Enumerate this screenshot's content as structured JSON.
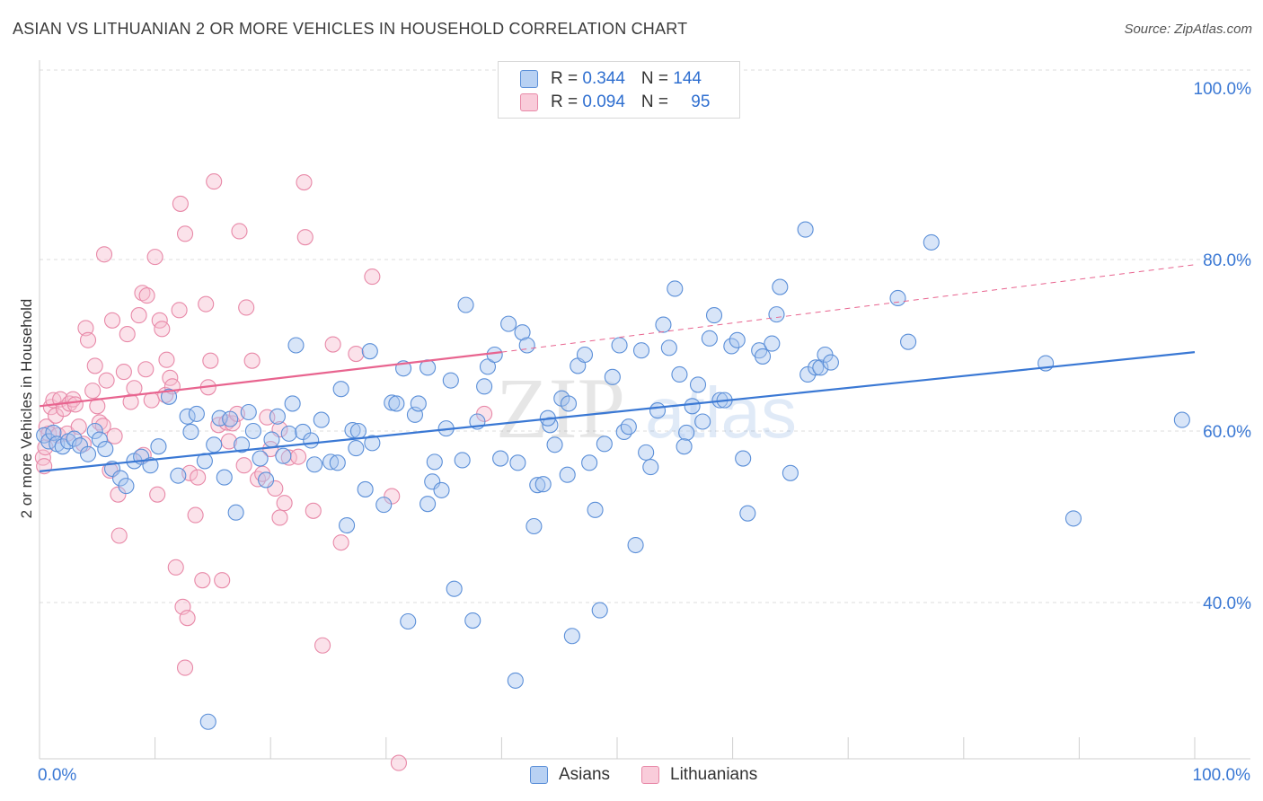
{
  "header": {
    "title": "ASIAN VS LITHUANIAN 2 OR MORE VEHICLES IN HOUSEHOLD CORRELATION CHART",
    "source": "Source: ZipAtlas.com"
  },
  "legend": {
    "rows": [
      {
        "r_label": "R = ",
        "r_value": "0.344",
        "n_label": "N = ",
        "n_value": "144"
      },
      {
        "r_label": "R = ",
        "r_value": "0.094",
        "n_label": "N = ",
        "n_value": "95"
      }
    ],
    "bottom": [
      "Asians",
      "Lithuanians"
    ]
  },
  "watermark": {
    "zip": "ZIP",
    "atlas": "atlas"
  },
  "colors": {
    "asian_fill": "#a9c6ef",
    "asian_stroke": "#5b8fd8",
    "asian_line": "#3a78d4",
    "lith_fill": "#f6bfd0",
    "lith_stroke": "#e889a8",
    "lith_line": "#e8648f",
    "tick_label": "#3a78d4",
    "grid": "#dcdcdc"
  },
  "chart_data": {
    "type": "scatter",
    "title": "ASIAN VS LITHUANIAN 2 OR MORE VEHICLES IN HOUSEHOLD CORRELATION CHART",
    "xlabel": "",
    "ylabel": "2 or more Vehicles in Household",
    "x_tick_labels": [
      "0.0%",
      "100.0%"
    ],
    "y_tick_labels": [
      "40.0%",
      "60.0%",
      "80.0%",
      "100.0%"
    ],
    "xlim": [
      0,
      100
    ],
    "ylim": [
      20,
      104
    ],
    "grid": true,
    "legend_position": "top-center",
    "series": [
      {
        "name": "Asians",
        "r": 0.344,
        "n": 144,
        "trend": {
          "x": [
            0,
            100
          ],
          "y": [
            55.3,
            69.2
          ],
          "style": "solid"
        },
        "points": [
          [
            0.4,
            59.5
          ],
          [
            0.8,
            58.8
          ],
          [
            1.2,
            59.8
          ],
          [
            1.5,
            58.5
          ],
          [
            2.0,
            58.2
          ],
          [
            2.5,
            58.8
          ],
          [
            3.0,
            59.1
          ],
          [
            3.5,
            58.3
          ],
          [
            4.2,
            57.3
          ],
          [
            4.8,
            60.0
          ],
          [
            5.2,
            59.0
          ],
          [
            5.7,
            57.9
          ],
          [
            6.3,
            55.6
          ],
          [
            7.0,
            54.5
          ],
          [
            7.5,
            53.6
          ],
          [
            8.2,
            56.5
          ],
          [
            8.8,
            57.0
          ],
          [
            9.6,
            56.0
          ],
          [
            10.3,
            58.2
          ],
          [
            11.2,
            64.0
          ],
          [
            12.0,
            54.8
          ],
          [
            12.8,
            61.7
          ],
          [
            13.1,
            59.9
          ],
          [
            13.6,
            62.0
          ],
          [
            14.3,
            56.5
          ],
          [
            14.6,
            26.1
          ],
          [
            15.1,
            58.4
          ],
          [
            15.6,
            61.5
          ],
          [
            16.0,
            54.6
          ],
          [
            16.5,
            61.4
          ],
          [
            17.0,
            50.5
          ],
          [
            17.5,
            58.4
          ],
          [
            18.1,
            62.2
          ],
          [
            19.1,
            56.8
          ],
          [
            19.6,
            54.3
          ],
          [
            20.1,
            59.0
          ],
          [
            20.6,
            61.7
          ],
          [
            21.1,
            57.1
          ],
          [
            21.6,
            59.7
          ],
          [
            21.9,
            63.2
          ],
          [
            22.2,
            70.0
          ],
          [
            22.8,
            59.9
          ],
          [
            23.5,
            58.9
          ],
          [
            23.8,
            56.1
          ],
          [
            24.4,
            61.3
          ],
          [
            25.2,
            56.4
          ],
          [
            25.8,
            56.3
          ],
          [
            26.1,
            64.9
          ],
          [
            26.6,
            49.0
          ],
          [
            27.1,
            60.1
          ],
          [
            27.6,
            60.0
          ],
          [
            28.2,
            53.2
          ],
          [
            28.6,
            69.3
          ],
          [
            28.8,
            58.6
          ],
          [
            29.8,
            51.4
          ],
          [
            30.5,
            63.3
          ],
          [
            30.9,
            63.2
          ],
          [
            31.5,
            67.3
          ],
          [
            31.9,
            37.8
          ],
          [
            32.5,
            61.9
          ],
          [
            32.8,
            63.2
          ],
          [
            33.6,
            67.4
          ],
          [
            33.6,
            51.5
          ],
          [
            34.0,
            54.1
          ],
          [
            34.2,
            56.4
          ],
          [
            34.8,
            53.1
          ],
          [
            35.6,
            65.9
          ],
          [
            35.9,
            41.6
          ],
          [
            36.6,
            56.6
          ],
          [
            36.9,
            74.7
          ],
          [
            37.5,
            37.9
          ],
          [
            37.9,
            61.1
          ],
          [
            38.5,
            65.2
          ],
          [
            38.8,
            67.5
          ],
          [
            39.4,
            68.9
          ],
          [
            39.9,
            56.8
          ],
          [
            40.6,
            72.5
          ],
          [
            41.2,
            30.9
          ],
          [
            41.4,
            56.3
          ],
          [
            41.8,
            71.5
          ],
          [
            42.2,
            70.0
          ],
          [
            42.8,
            48.9
          ],
          [
            43.1,
            53.7
          ],
          [
            43.6,
            53.8
          ],
          [
            44.2,
            60.7
          ],
          [
            44.6,
            58.4
          ],
          [
            45.2,
            63.8
          ],
          [
            45.7,
            54.9
          ],
          [
            45.8,
            63.2
          ],
          [
            46.1,
            36.1
          ],
          [
            46.6,
            67.6
          ],
          [
            47.2,
            68.9
          ],
          [
            47.6,
            56.3
          ],
          [
            48.1,
            50.8
          ],
          [
            48.5,
            39.1
          ],
          [
            48.9,
            58.5
          ],
          [
            49.6,
            66.3
          ],
          [
            50.2,
            70.0
          ],
          [
            50.6,
            59.9
          ],
          [
            51.0,
            60.5
          ],
          [
            51.6,
            46.7
          ],
          [
            52.1,
            69.4
          ],
          [
            52.5,
            57.5
          ],
          [
            52.9,
            55.8
          ],
          [
            53.5,
            62.4
          ],
          [
            54.0,
            72.4
          ],
          [
            54.5,
            69.7
          ],
          [
            55.0,
            76.6
          ],
          [
            55.4,
            66.6
          ],
          [
            56.0,
            59.8
          ],
          [
            56.5,
            62.9
          ],
          [
            57.0,
            65.4
          ],
          [
            57.4,
            61.1
          ],
          [
            58.0,
            70.8
          ],
          [
            58.4,
            73.5
          ],
          [
            58.9,
            63.6
          ],
          [
            59.3,
            63.6
          ],
          [
            59.9,
            69.9
          ],
          [
            60.4,
            70.6
          ],
          [
            60.9,
            56.8
          ],
          [
            61.3,
            50.4
          ],
          [
            62.3,
            69.4
          ],
          [
            62.6,
            68.7
          ],
          [
            63.4,
            70.2
          ],
          [
            63.8,
            73.6
          ],
          [
            64.1,
            76.8
          ],
          [
            65.0,
            55.1
          ],
          [
            66.3,
            83.5
          ],
          [
            66.5,
            66.6
          ],
          [
            67.2,
            67.4
          ],
          [
            67.6,
            67.4
          ],
          [
            68.0,
            68.9
          ],
          [
            68.5,
            68.0
          ],
          [
            74.3,
            75.5
          ],
          [
            75.2,
            70.4
          ],
          [
            77.2,
            82.0
          ],
          [
            87.1,
            67.9
          ],
          [
            89.5,
            49.8
          ],
          [
            98.9,
            61.3
          ],
          [
            18.5,
            60.0
          ],
          [
            27.4,
            58.0
          ],
          [
            35.2,
            60.3
          ],
          [
            44.0,
            61.5
          ],
          [
            55.8,
            58.2
          ]
        ]
      },
      {
        "name": "Lithuanians",
        "r": 0.094,
        "n": 95,
        "trend": {
          "x": [
            0,
            40
          ],
          "y": [
            62.9,
            69.2
          ],
          "style": "solid",
          "dashed_extension": {
            "x": [
              40,
              100
            ],
            "y": [
              69.2,
              79.4
            ]
          }
        },
        "points": [
          [
            0.3,
            56.9
          ],
          [
            0.4,
            55.9
          ],
          [
            0.5,
            58.1
          ],
          [
            0.6,
            60.5
          ],
          [
            0.8,
            59.7
          ],
          [
            1.0,
            62.8
          ],
          [
            1.2,
            63.6
          ],
          [
            1.4,
            61.8
          ],
          [
            1.6,
            59.5
          ],
          [
            1.8,
            63.7
          ],
          [
            2.1,
            62.6
          ],
          [
            2.4,
            59.7
          ],
          [
            2.6,
            63.2
          ],
          [
            2.9,
            63.7
          ],
          [
            3.1,
            63.1
          ],
          [
            3.4,
            60.5
          ],
          [
            3.8,
            58.5
          ],
          [
            4.0,
            72.0
          ],
          [
            4.2,
            70.6
          ],
          [
            4.6,
            64.7
          ],
          [
            4.8,
            67.6
          ],
          [
            5.0,
            62.9
          ],
          [
            5.2,
            61.0
          ],
          [
            5.5,
            60.6
          ],
          [
            5.6,
            80.6
          ],
          [
            5.8,
            65.9
          ],
          [
            6.1,
            55.4
          ],
          [
            6.3,
            72.9
          ],
          [
            6.5,
            59.4
          ],
          [
            6.8,
            52.6
          ],
          [
            6.9,
            47.8
          ],
          [
            7.3,
            66.9
          ],
          [
            7.6,
            71.3
          ],
          [
            7.9,
            63.4
          ],
          [
            8.2,
            65.0
          ],
          [
            8.6,
            73.5
          ],
          [
            8.9,
            76.1
          ],
          [
            9.0,
            57.2
          ],
          [
            9.2,
            67.2
          ],
          [
            9.3,
            75.8
          ],
          [
            9.7,
            63.6
          ],
          [
            10.2,
            52.6
          ],
          [
            10.4,
            72.9
          ],
          [
            10.6,
            71.9
          ],
          [
            10.9,
            64.2
          ],
          [
            11.0,
            68.3
          ],
          [
            11.3,
            66.2
          ],
          [
            11.5,
            65.2
          ],
          [
            11.8,
            44.1
          ],
          [
            12.1,
            74.1
          ],
          [
            12.2,
            86.5
          ],
          [
            12.4,
            39.5
          ],
          [
            12.6,
            32.4
          ],
          [
            12.8,
            38.2
          ],
          [
            13.0,
            55.1
          ],
          [
            13.5,
            50.2
          ],
          [
            13.7,
            54.6
          ],
          [
            14.1,
            42.6
          ],
          [
            14.4,
            74.8
          ],
          [
            14.6,
            65.1
          ],
          [
            14.8,
            68.2
          ],
          [
            15.1,
            89.1
          ],
          [
            15.5,
            60.7
          ],
          [
            15.8,
            42.6
          ],
          [
            16.2,
            61.0
          ],
          [
            16.4,
            58.8
          ],
          [
            16.7,
            60.9
          ],
          [
            17.1,
            62.0
          ],
          [
            17.3,
            83.3
          ],
          [
            17.7,
            56.0
          ],
          [
            17.9,
            74.4
          ],
          [
            18.4,
            68.2
          ],
          [
            18.9,
            54.4
          ],
          [
            19.3,
            55.0
          ],
          [
            19.7,
            61.6
          ],
          [
            20.0,
            57.9
          ],
          [
            20.4,
            53.3
          ],
          [
            20.8,
            49.9
          ],
          [
            21.2,
            51.6
          ],
          [
            21.6,
            56.9
          ],
          [
            22.4,
            57.0
          ],
          [
            22.9,
            89.0
          ],
          [
            23.0,
            82.6
          ],
          [
            23.7,
            50.7
          ],
          [
            24.5,
            35.0
          ],
          [
            25.4,
            70.1
          ],
          [
            26.1,
            47.0
          ],
          [
            27.4,
            69.0
          ],
          [
            28.8,
            78.0
          ],
          [
            30.5,
            52.4
          ],
          [
            31.1,
            21.3
          ],
          [
            38.5,
            62.0
          ],
          [
            12.6,
            83.0
          ],
          [
            10.0,
            80.3
          ],
          [
            20.8,
            60.2
          ]
        ]
      }
    ]
  }
}
